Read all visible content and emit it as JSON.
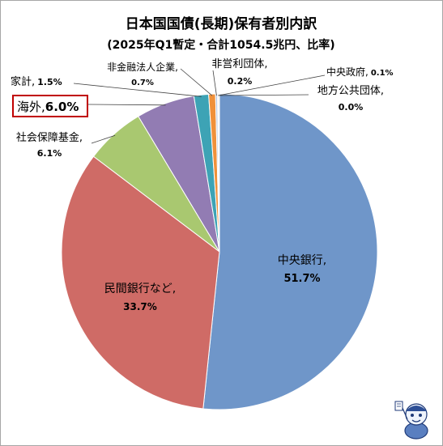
{
  "chart_data": {
    "type": "pie",
    "title": "日本国国債(長期)保有者別内訳",
    "subtitle": "(2025年Q1暫定・合計1054.5兆円、比率)",
    "start": "12 o'clock",
    "direction": "clockwise",
    "slices": [
      {
        "name": "中央銀行,",
        "value_label": "51.7%",
        "value": 51.7,
        "color": "#6f96c9"
      },
      {
        "name": "民間銀行など,",
        "value_label": "33.7%",
        "value": 33.7,
        "color": "#cf6b66"
      },
      {
        "name": "社会保障基金,",
        "value_label": "6.1%",
        "value": 6.1,
        "color": "#a9c870"
      },
      {
        "name": "海外,",
        "value_label": "6.0%",
        "value": 6.0,
        "color": "#927cb3",
        "highlight_color": "#c00000"
      },
      {
        "name": "家計,",
        "value_label": "1.5%",
        "value": 1.5,
        "color": "#3da3b5"
      },
      {
        "name": "非金融法人企業,",
        "value_label": "0.7%",
        "value": 0.7,
        "color": "#f0913a"
      },
      {
        "name": "非営利団体,",
        "value_label": "0.2%",
        "value": 0.2,
        "color": "#b7c8e0"
      },
      {
        "name": "中央政府,",
        "value_label": "0.1%",
        "value": 0.1,
        "color": "#e8b5b3"
      },
      {
        "name": "地方公共団体,",
        "value_label": "0.0%",
        "value": 0.0,
        "color": "#cfe0b0"
      }
    ]
  }
}
